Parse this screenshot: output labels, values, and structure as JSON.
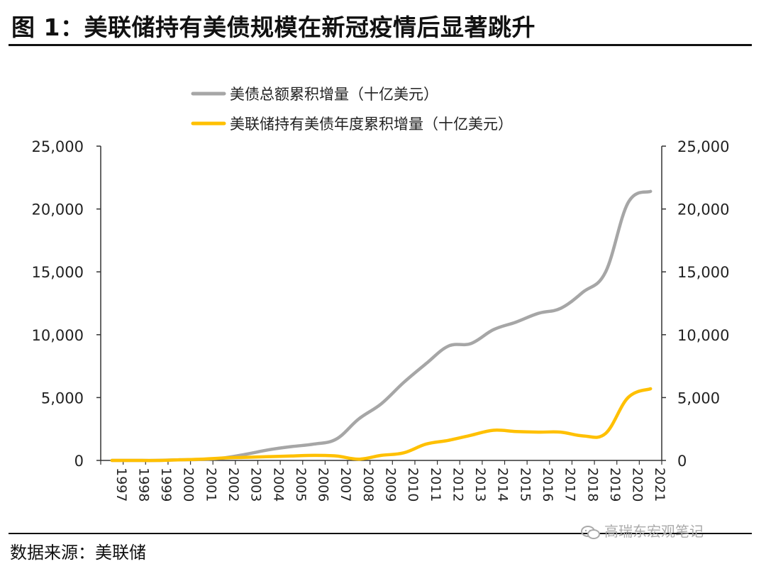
{
  "header": {
    "title": "图 1：美联储持有美债规模在新冠疫情后显著跳升"
  },
  "footer": {
    "source": "数据来源：美联储",
    "watermark": "高瑞东宏观笔记"
  },
  "colors": {
    "total": "#a6a6a6",
    "fed": "#ffc000",
    "axis": "#333333"
  },
  "chart_data": {
    "type": "line",
    "categories": [
      "1997",
      "1998",
      "1999",
      "2000",
      "2001",
      "2002",
      "2003",
      "2004",
      "2005",
      "2006",
      "2007",
      "2008",
      "2009",
      "2010",
      "2011",
      "2012",
      "2013",
      "2014",
      "2015",
      "2016",
      "2017",
      "2018",
      "2019",
      "2020",
      "2021"
    ],
    "series": [
      {
        "name": "美债总额累积增量（十亿美元）",
        "values": [
          0,
          0,
          0,
          50,
          80,
          200,
          500,
          850,
          1100,
          1300,
          1700,
          3300,
          4500,
          6200,
          7700,
          9100,
          9300,
          10400,
          11000,
          11700,
          12100,
          13400,
          15000,
          20500,
          21400
        ]
      },
      {
        "name": "美联储持有美债年度累积增量（十亿美元）",
        "values": [
          0,
          0,
          0,
          50,
          100,
          200,
          250,
          300,
          350,
          400,
          350,
          100,
          400,
          600,
          1300,
          1600,
          2000,
          2400,
          2300,
          2250,
          2250,
          1950,
          2150,
          5000,
          5700
        ]
      }
    ],
    "ylim": [
      0,
      25000
    ],
    "yticks": [
      "0",
      "5,000",
      "10,000",
      "15,000",
      "20,000",
      "25,000"
    ],
    "y2ticks": [
      "0",
      "5,000",
      "10,000",
      "15,000",
      "20,000",
      "25,000"
    ],
    "legend_position": "top-center",
    "grid": false
  }
}
